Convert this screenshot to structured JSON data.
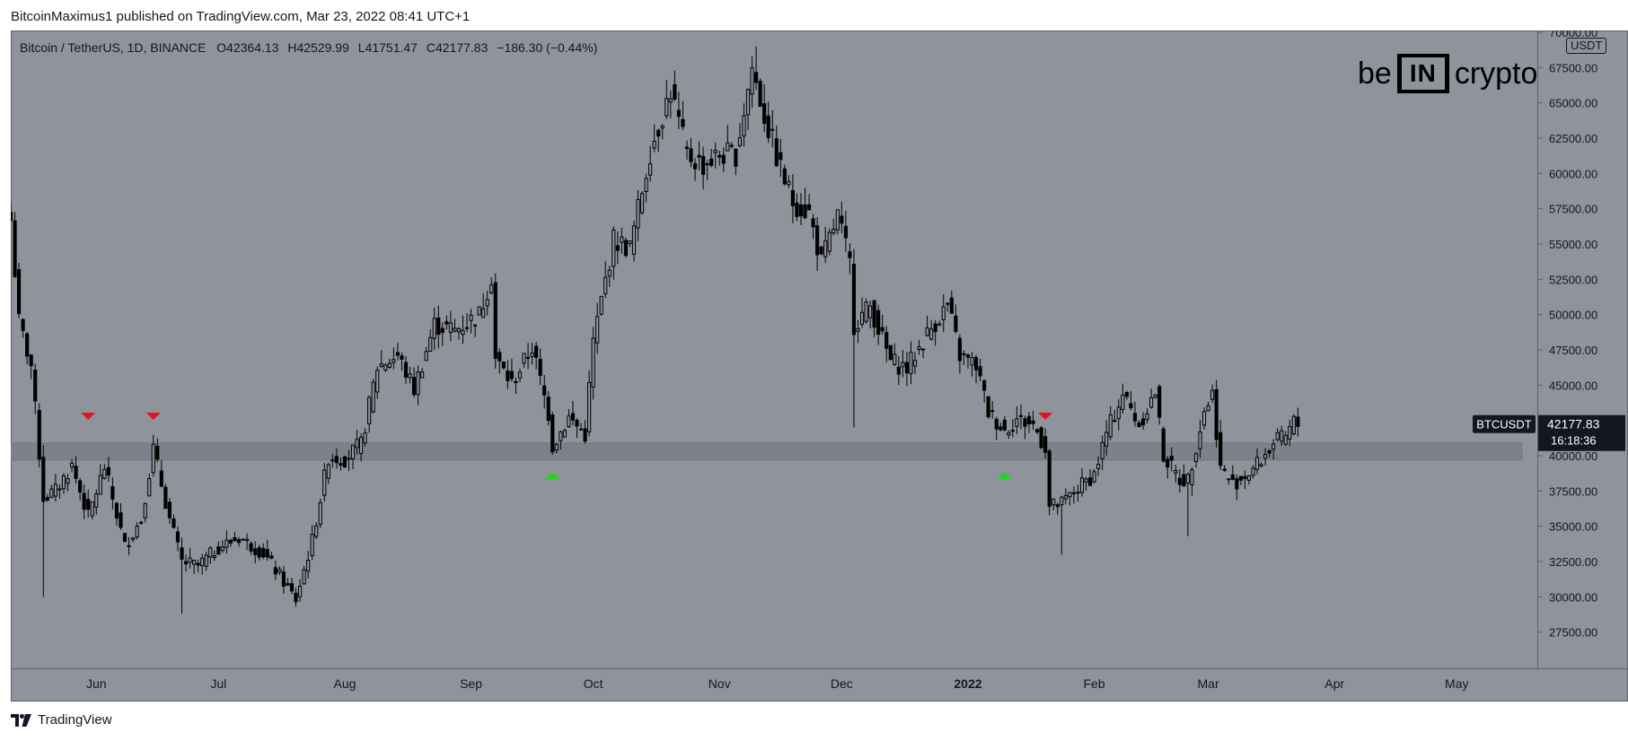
{
  "header": {
    "publish_line": "BitcoinMaximus1 published on TradingView.com, Mar 23, 2022 08:41 UTC+1"
  },
  "legend": {
    "symbol": "Bitcoin / TetherUS, 1D, BINANCE",
    "o_key": "O",
    "o_val": "42364.13",
    "h_key": "H",
    "h_val": "42529.99",
    "l_key": "L",
    "l_val": "41751.47",
    "c_key": "C",
    "c_val": "42177.83",
    "change": "−186.30 (−0.44%)"
  },
  "brand": {
    "left": "be",
    "box": "IN",
    "right": "crypto"
  },
  "unit": "USDT",
  "footer": {
    "label": "TradingView",
    "icon": "tradingview-logo-icon"
  },
  "colors": {
    "background": "#8f939b",
    "candle": "#000000",
    "support_zone": "#7d8189",
    "marker_red": "#e0141e",
    "marker_green": "#26d126",
    "label_bg": "#131722",
    "label_fg": "#ffffff"
  },
  "chart_data": {
    "type": "candlestick",
    "title": "Bitcoin / TetherUS, 1D, BINANCE",
    "ylim": [
      25000,
      70000
    ],
    "yticks": [
      "70000.00",
      "67500.00",
      "65000.00",
      "62500.00",
      "60000.00",
      "57500.00",
      "55000.00",
      "52500.00",
      "50000.00",
      "47500.00",
      "45000.00",
      "42500.00",
      "40000.00",
      "37500.00",
      "35000.00",
      "32500.00",
      "30000.00",
      "27500.00"
    ],
    "xlim": [
      "2021-05-11",
      "2022-05-21"
    ],
    "xticks": [
      {
        "label": "Jun",
        "date": "2021-06-01"
      },
      {
        "label": "Jul",
        "date": "2021-07-01"
      },
      {
        "label": "Aug",
        "date": "2021-08-01"
      },
      {
        "label": "Sep",
        "date": "2021-09-01"
      },
      {
        "label": "Oct",
        "date": "2021-10-01"
      },
      {
        "label": "Nov",
        "date": "2021-11-01"
      },
      {
        "label": "Dec",
        "date": "2021-12-01"
      },
      {
        "label": "2022",
        "date": "2022-01-01"
      },
      {
        "label": "Feb",
        "date": "2022-02-01"
      },
      {
        "label": "Mar",
        "date": "2022-03-01"
      },
      {
        "label": "Apr",
        "date": "2022-04-01"
      },
      {
        "label": "May",
        "date": "2022-05-01"
      }
    ],
    "support_zone": {
      "from": 39700,
      "to": 40900,
      "end_date": "2022-05-17"
    },
    "current_price": {
      "label": "BTCUSDT",
      "price": "42177.83",
      "countdown": "16:18:36",
      "value": 42177.83
    },
    "markers": [
      {
        "date": "2021-05-30",
        "price": 42800,
        "color": "red",
        "dir": "down"
      },
      {
        "date": "2021-06-15",
        "price": 42800,
        "color": "red",
        "dir": "down"
      },
      {
        "date": "2021-09-21",
        "price": 38600,
        "color": "green",
        "dir": "up"
      },
      {
        "date": "2022-01-10",
        "price": 38600,
        "color": "green",
        "dir": "up"
      },
      {
        "date": "2022-01-20",
        "price": 42800,
        "color": "red",
        "dir": "down"
      }
    ],
    "closes": [
      {
        "date": "2021-05-11",
        "close": 56700
      },
      {
        "date": "2021-05-13",
        "close": 49500
      },
      {
        "date": "2021-05-16",
        "close": 46400
      },
      {
        "date": "2021-05-19",
        "close": 37000
      },
      {
        "date": "2021-05-22",
        "close": 37500
      },
      {
        "date": "2021-05-26",
        "close": 39300
      },
      {
        "date": "2021-05-30",
        "close": 35700
      },
      {
        "date": "2021-06-03",
        "close": 39200
      },
      {
        "date": "2021-06-08",
        "close": 33600
      },
      {
        "date": "2021-06-12",
        "close": 35500
      },
      {
        "date": "2021-06-15",
        "close": 40500
      },
      {
        "date": "2021-06-19",
        "close": 35500
      },
      {
        "date": "2021-06-22",
        "close": 32500
      },
      {
        "date": "2021-06-26",
        "close": 32200
      },
      {
        "date": "2021-07-01",
        "close": 33500
      },
      {
        "date": "2021-07-06",
        "close": 34200
      },
      {
        "date": "2021-07-12",
        "close": 33100
      },
      {
        "date": "2021-07-16",
        "close": 31500
      },
      {
        "date": "2021-07-20",
        "close": 29800
      },
      {
        "date": "2021-07-24",
        "close": 34000
      },
      {
        "date": "2021-07-28",
        "close": 39900
      },
      {
        "date": "2021-08-01",
        "close": 39800
      },
      {
        "date": "2021-08-05",
        "close": 40800
      },
      {
        "date": "2021-08-09",
        "close": 46300
      },
      {
        "date": "2021-08-14",
        "close": 47100
      },
      {
        "date": "2021-08-18",
        "close": 44700
      },
      {
        "date": "2021-08-23",
        "close": 49300
      },
      {
        "date": "2021-08-28",
        "close": 48900
      },
      {
        "date": "2021-09-03",
        "close": 50000
      },
      {
        "date": "2021-09-06",
        "close": 52700
      },
      {
        "date": "2021-09-07",
        "close": 46900
      },
      {
        "date": "2021-09-11",
        "close": 45100
      },
      {
        "date": "2021-09-16",
        "close": 47700
      },
      {
        "date": "2021-09-20",
        "close": 43000
      },
      {
        "date": "2021-09-21",
        "close": 40700
      },
      {
        "date": "2021-09-25",
        "close": 42700
      },
      {
        "date": "2021-09-29",
        "close": 41500
      },
      {
        "date": "2021-10-01",
        "close": 48100
      },
      {
        "date": "2021-10-06",
        "close": 55300
      },
      {
        "date": "2021-10-10",
        "close": 54700
      },
      {
        "date": "2021-10-15",
        "close": 61600
      },
      {
        "date": "2021-10-20",
        "close": 65900
      },
      {
        "date": "2021-10-24",
        "close": 61300
      },
      {
        "date": "2021-10-28",
        "close": 60600
      },
      {
        "date": "2021-11-01",
        "close": 61300
      },
      {
        "date": "2021-11-05",
        "close": 61400
      },
      {
        "date": "2021-11-09",
        "close": 67500
      },
      {
        "date": "2021-11-12",
        "close": 64100
      },
      {
        "date": "2021-11-16",
        "close": 60300
      },
      {
        "date": "2021-11-19",
        "close": 58000
      },
      {
        "date": "2021-11-23",
        "close": 57200
      },
      {
        "date": "2021-11-26",
        "close": 53700
      },
      {
        "date": "2021-11-30",
        "close": 57000
      },
      {
        "date": "2021-12-03",
        "close": 53600
      },
      {
        "date": "2021-12-04",
        "close": 49300
      },
      {
        "date": "2021-12-08",
        "close": 50600
      },
      {
        "date": "2021-12-13",
        "close": 46700
      },
      {
        "date": "2021-12-17",
        "close": 46200
      },
      {
        "date": "2021-12-22",
        "close": 48600
      },
      {
        "date": "2021-12-27",
        "close": 50700
      },
      {
        "date": "2021-12-30",
        "close": 47100
      },
      {
        "date": "2022-01-03",
        "close": 46400
      },
      {
        "date": "2022-01-06",
        "close": 43100
      },
      {
        "date": "2022-01-10",
        "close": 41800
      },
      {
        "date": "2022-01-13",
        "close": 42600
      },
      {
        "date": "2022-01-17",
        "close": 42200
      },
      {
        "date": "2022-01-20",
        "close": 40600
      },
      {
        "date": "2022-01-21",
        "close": 36400
      },
      {
        "date": "2022-01-24",
        "close": 36600
      },
      {
        "date": "2022-01-28",
        "close": 37700
      },
      {
        "date": "2022-02-01",
        "close": 38700
      },
      {
        "date": "2022-02-04",
        "close": 41600
      },
      {
        "date": "2022-02-08",
        "close": 44400
      },
      {
        "date": "2022-02-12",
        "close": 42200
      },
      {
        "date": "2022-02-16",
        "close": 44500
      },
      {
        "date": "2022-02-18",
        "close": 40000
      },
      {
        "date": "2022-02-22",
        "close": 38300
      },
      {
        "date": "2022-02-24",
        "close": 38300
      },
      {
        "date": "2022-02-28",
        "close": 43200
      },
      {
        "date": "2022-03-02",
        "close": 44400
      },
      {
        "date": "2022-03-04",
        "close": 39100
      },
      {
        "date": "2022-03-07",
        "close": 38000
      },
      {
        "date": "2022-03-11",
        "close": 38800
      },
      {
        "date": "2022-03-14",
        "close": 39700
      },
      {
        "date": "2022-03-17",
        "close": 40900
      },
      {
        "date": "2022-03-20",
        "close": 41300
      },
      {
        "date": "2022-03-22",
        "close": 42400
      },
      {
        "date": "2022-03-23",
        "close": 42177.83
      }
    ],
    "extreme_wicks": [
      {
        "date": "2021-05-19",
        "low": 30000
      },
      {
        "date": "2021-06-22",
        "low": 28800
      },
      {
        "date": "2021-07-20",
        "low": 29300
      },
      {
        "date": "2021-11-10",
        "high": 69000
      },
      {
        "date": "2021-12-04",
        "low": 42000
      },
      {
        "date": "2022-01-24",
        "low": 33000
      },
      {
        "date": "2022-02-24",
        "low": 34300
      }
    ]
  }
}
